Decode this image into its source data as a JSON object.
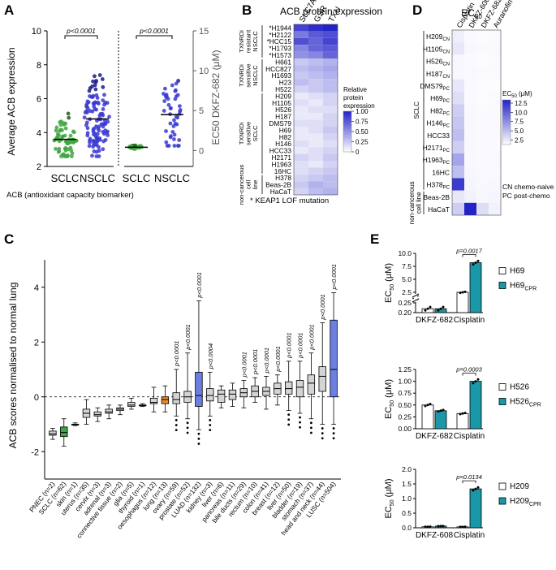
{
  "panels": {
    "A": "A",
    "B": "B",
    "C": "C",
    "D": "D",
    "E": "E"
  },
  "panelA": {
    "ylabel": "Average ACB expression",
    "y2label": "EC50 DKFZ-682 (μM)",
    "yticks": [
      "2",
      "4",
      "6",
      "8",
      "10"
    ],
    "y2ticks": [
      "0",
      "5",
      "10",
      "15"
    ],
    "groups": [
      "SCLC",
      "NSCLC",
      "SCLC",
      "NSCLC"
    ],
    "pvalue": "p<0.0001",
    "caption": "ACB (antioxidant capacity biomarker)",
    "left_medians": [
      3.6,
      4.8
    ],
    "right_medians": [
      0.4,
      4.5
    ],
    "colors": {
      "sclc": "#3fa63f",
      "nsclc": "#3a3ad0",
      "sclc_dark": "#166016",
      "nsclc_dark": "#1b1b8a"
    }
  },
  "panelB": {
    "title": "ACB protein expression",
    "columns": [
      "SLC7A11",
      "GSR",
      "TXN"
    ],
    "rows": [
      "*H1944",
      "*H2122",
      "*HCC15",
      "*H1793",
      "*H1573",
      "H661",
      "HCC827",
      "H1693",
      "H23",
      "H522",
      "H209",
      "H1105",
      "H526",
      "H187",
      "DMS79",
      "H69",
      "H82",
      "H146",
      "HCC33",
      "H2171",
      "H1963",
      "16HC",
      "H378",
      "Beas-2B",
      "HaCaT"
    ],
    "values": [
      [
        0.85,
        0.95,
        1.0
      ],
      [
        0.6,
        0.75,
        0.8
      ],
      [
        0.8,
        0.7,
        0.85
      ],
      [
        0.55,
        0.7,
        0.75
      ],
      [
        0.5,
        0.55,
        0.7
      ],
      [
        0.25,
        0.3,
        0.35
      ],
      [
        0.3,
        0.35,
        0.4
      ],
      [
        0.25,
        0.3,
        0.35
      ],
      [
        0.3,
        0.25,
        0.3
      ],
      [
        0.2,
        0.25,
        0.3
      ],
      [
        0.1,
        0.15,
        0.2
      ],
      [
        0.15,
        0.1,
        0.2
      ],
      [
        0.1,
        0.15,
        0.15
      ],
      [
        0.1,
        0.1,
        0.2
      ],
      [
        0.15,
        0.15,
        0.2
      ],
      [
        0.1,
        0.15,
        0.25
      ],
      [
        0.1,
        0.1,
        0.2
      ],
      [
        0.15,
        0.1,
        0.15
      ],
      [
        0.1,
        0.15,
        0.2
      ],
      [
        0.2,
        0.15,
        0.25
      ],
      [
        0.15,
        0.1,
        0.2
      ],
      [
        0.15,
        0.2,
        0.25
      ],
      [
        0.2,
        0.25,
        0.3
      ],
      [
        0.25,
        0.35,
        0.3
      ],
      [
        0.2,
        0.3,
        0.35
      ]
    ],
    "groups": [
      {
        "label": "TXNRDi resistant NSCLC",
        "rows": [
          0,
          4
        ]
      },
      {
        "label": "TXNRDi sensitive NSCLC",
        "rows": [
          5,
          9
        ]
      },
      {
        "label": "TXNRDi sensitive SCLC",
        "rows": [
          10,
          21
        ]
      },
      {
        "label": "non-cancerous cell line",
        "rows": [
          22,
          24
        ]
      }
    ],
    "legend_title": "Relative protein expression",
    "legend_ticks": [
      "1.00",
      "0.75",
      "0.50",
      "0.25",
      "0"
    ],
    "footnote": "* KEAP1 LOF mutation"
  },
  "panelD": {
    "title": "EC50",
    "columns": [
      "Cisplatin",
      "DKFZ-608",
      "DKFZ-682",
      "Auranofin"
    ],
    "rows": [
      {
        "name": "H209",
        "sub": "CN"
      },
      {
        "name": "H1105",
        "sub": "CN"
      },
      {
        "name": "H526",
        "sub": "CN"
      },
      {
        "name": "H187",
        "sub": "CN"
      },
      {
        "name": "DMS79",
        "sub": "PC"
      },
      {
        "name": "H69",
        "sub": "PC"
      },
      {
        "name": "H82",
        "sub": "PC"
      },
      {
        "name": "H146",
        "sub": "PC"
      },
      {
        "name": "HCC33",
        "sub": ""
      },
      {
        "name": "H2171",
        "sub": "PC"
      },
      {
        "name": "H1963",
        "sub": "PC"
      },
      {
        "name": "16HC",
        "sub": ""
      },
      {
        "name": "H378",
        "sub": "PC"
      },
      {
        "name": "Beas-2B",
        "sub": ""
      },
      {
        "name": "HaCaT",
        "sub": ""
      }
    ],
    "values": [
      [
        1.0,
        0.3,
        0.2,
        0.3
      ],
      [
        1.5,
        0.5,
        0.3,
        0.4
      ],
      [
        0.5,
        0.3,
        0.2,
        0.3
      ],
      [
        0.5,
        0.4,
        0.3,
        0.3
      ],
      [
        1.5,
        0.3,
        0.2,
        0.2
      ],
      [
        2.0,
        0.3,
        0.2,
        0.3
      ],
      [
        3.0,
        0.4,
        0.3,
        0.3
      ],
      [
        3.5,
        0.5,
        0.3,
        0.4
      ],
      [
        4.0,
        0.4,
        0.3,
        0.3
      ],
      [
        3.0,
        0.5,
        0.3,
        0.3
      ],
      [
        5.5,
        0.4,
        0.3,
        0.4
      ],
      [
        4.0,
        0.5,
        0.4,
        0.3
      ],
      [
        12.0,
        0.6,
        0.4,
        0.5
      ],
      [
        1.5,
        0.8,
        0.5,
        0.6
      ],
      [
        3.0,
        13.5,
        2.0,
        0.8
      ]
    ],
    "groups": [
      {
        "label": "SCLC",
        "rows": [
          0,
          12
        ]
      },
      {
        "label": "non-cancerous cell line",
        "rows": [
          13,
          14
        ]
      }
    ],
    "legend_title": "EC50 (μM)",
    "legend_ticks": [
      "12.5",
      "10.0",
      "7.5",
      "5.0",
      "2.5"
    ],
    "notes": [
      "CN chemo-naive",
      "PC post-chemo"
    ]
  },
  "chart_data": [
    {
      "type": "box",
      "ylabel": "ACB scores normalised to normal lung",
      "ylim": [
        -3,
        5
      ],
      "yticks": [
        "-2",
        "0",
        "2",
        "4"
      ],
      "categories": [
        "PNEC (n=2)",
        "SCLC (n=62)",
        "skin (n=1)",
        "uterus (n=35)",
        "cervix (n=3)",
        "adrenal (n=3)",
        "connective tissue (n=2)",
        "glia (n=5)",
        "thyroid (n=1)",
        "oesophagus (n=12)",
        "lung (n=13)",
        "ovary (n=59)",
        "prostate (n=52)",
        "LUAD (n=132)",
        "kidney (n=3)",
        "liver (n=6)",
        "pancreas (n=11)",
        "bile ducts (n=29)",
        "rectum (n=10)",
        "colon (n=41)",
        "breast (n=12)",
        "liver (n=50)",
        "bladder (n=19)",
        "stomach (n=37)",
        "head and neck (n=44)",
        "LUSC (n=504)"
      ],
      "boxes": [
        [
          -1.55,
          -1.4,
          -1.35,
          -1.25,
          -1.15
        ],
        [
          -1.8,
          -1.45,
          -1.3,
          -1.1,
          -0.8
        ],
        [
          -1.05,
          -1.0,
          -1.0,
          -1.0,
          -0.95
        ],
        [
          -1.0,
          -0.75,
          -0.6,
          -0.45,
          -0.1
        ],
        [
          -0.9,
          -0.7,
          -0.65,
          -0.55,
          -0.4
        ],
        [
          -0.8,
          -0.6,
          -0.55,
          -0.45,
          -0.3
        ],
        [
          -0.65,
          -0.5,
          -0.45,
          -0.4,
          -0.3
        ],
        [
          -0.45,
          -0.35,
          -0.3,
          -0.2,
          -0.05
        ],
        [
          -0.35,
          -0.3,
          -0.3,
          -0.3,
          -0.25
        ],
        [
          -0.55,
          -0.25,
          -0.2,
          -0.05,
          0.35
        ],
        [
          -0.55,
          -0.25,
          -0.1,
          0.0,
          0.4
        ],
        [
          -0.7,
          -0.25,
          -0.1,
          0.15,
          1.0
        ],
        [
          -0.8,
          -0.2,
          0.0,
          0.2,
          1.6
        ],
        [
          -1.2,
          -0.35,
          0.05,
          0.9,
          3.5
        ],
        [
          -0.7,
          -0.15,
          0.05,
          0.3,
          0.9
        ],
        [
          -0.4,
          -0.2,
          0.1,
          0.25,
          0.4
        ],
        [
          -0.35,
          -0.1,
          0.1,
          0.25,
          0.5
        ],
        [
          -0.4,
          0.0,
          0.15,
          0.3,
          0.6
        ],
        [
          -0.2,
          0.0,
          0.2,
          0.4,
          0.7
        ],
        [
          -0.45,
          0.05,
          0.2,
          0.35,
          0.75
        ],
        [
          -0.3,
          0.1,
          0.3,
          0.5,
          0.8
        ],
        [
          -0.5,
          0.1,
          0.3,
          0.55,
          1.3
        ],
        [
          -0.6,
          0.0,
          0.35,
          0.6,
          1.3
        ],
        [
          -0.8,
          0.1,
          0.5,
          0.8,
          1.6
        ],
        [
          -1.0,
          0.2,
          0.75,
          1.1,
          2.7
        ],
        [
          -1.0,
          0.0,
          1.0,
          2.8,
          3.8
        ]
      ],
      "highlight": {
        "SCLC (n=62)": "#3fa63f",
        "lung (n=13)": "#f08a1c",
        "LUAD (n=132)": "#6a7fe0",
        "LUSC (n=504)": "#6a7fe0"
      },
      "pvalues": [
        "",
        "",
        "",
        "",
        "",
        "",
        "",
        "",
        "",
        "",
        "",
        "p<0.0001",
        "p<0.0001",
        "p<0.0001",
        "p<0.0004",
        "",
        "",
        "p<0.0001",
        "p<0.0001",
        "p<0.0001",
        "p<0.0001",
        "p<0.0001",
        "p<0.0001",
        "p<0.0001",
        "p<0.0001",
        "p<0.0001"
      ]
    },
    {
      "type": "bar",
      "ylabel": "EC50 (μM)",
      "categories": [
        "DKFZ-682",
        "Cisplatin"
      ],
      "series": [
        {
          "name": "H69",
          "values": [
            0.22,
            2.5
          ]
        },
        {
          "name": "H69CPR",
          "values": [
            0.22,
            8.2
          ]
        }
      ],
      "yticks": [
        "0.20",
        "0.25",
        "2.5",
        "5.0",
        "7.5",
        "10.0"
      ],
      "pvalue": "p=0.0017"
    },
    {
      "type": "bar",
      "ylabel": "EC50 (μM)",
      "categories": [
        "DKFZ-682",
        "Cisplatin"
      ],
      "series": [
        {
          "name": "H526",
          "values": [
            0.5,
            0.32
          ]
        },
        {
          "name": "H526CPR",
          "values": [
            0.38,
            1.0
          ]
        }
      ],
      "yticks": [
        "0.00",
        "0.25",
        "0.50",
        "0.75",
        "1.00",
        "1.25"
      ],
      "ylim": [
        0,
        1.25
      ],
      "pvalue": "p=0.0003"
    },
    {
      "type": "bar",
      "ylabel": "EC50 (μM)",
      "categories": [
        "DKFZ-608",
        "Cisplatin"
      ],
      "series": [
        {
          "name": "H209",
          "values": [
            0.035,
            0.032
          ]
        },
        {
          "name": "H209CPR",
          "values": [
            0.058,
            1.33
          ]
        }
      ],
      "yticks": [
        "0.0",
        "0.5",
        "1.0",
        "1.5",
        "2.0"
      ],
      "pvalue": "p=0.0134"
    }
  ],
  "panelE": {
    "legend": [
      {
        "base": "H69",
        "sub": ""
      },
      {
        "base": "H69",
        "sub": "CPR"
      },
      {
        "base": "H526",
        "sub": ""
      },
      {
        "base": "H526",
        "sub": "CPR"
      },
      {
        "base": "H209",
        "sub": ""
      },
      {
        "base": "H209",
        "sub": "CPR"
      }
    ],
    "ylabel_base": "EC",
    "ylabel_sub": "50",
    "ylabel_unit": " (μM)",
    "fill_color": "#1b98a8"
  }
}
